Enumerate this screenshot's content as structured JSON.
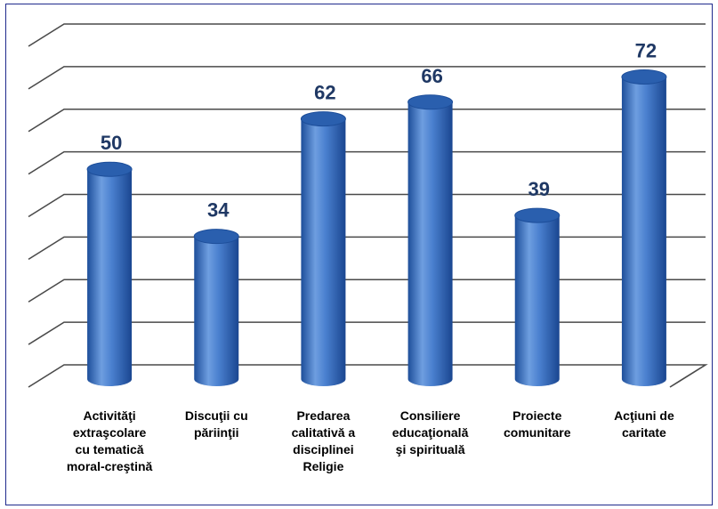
{
  "chart_data": {
    "type": "bar",
    "style": "3d-cylinder",
    "categories": [
      "Activităţi\nextraşcolare\ncu tematică\nmoral-creştină",
      "Discuţii cu\npăriinţii",
      "Predarea\ncalitativă a\ndisciplinei\nReligie",
      "Consiliere\neducaţională\nşi spirituală",
      "Proiecte\ncomunitare",
      "Acţiuni de\ncaritate"
    ],
    "values": [
      50,
      34,
      62,
      66,
      39,
      72
    ],
    "data_labels": [
      "50",
      "34",
      "62",
      "66",
      "39",
      "72"
    ],
    "title": "",
    "xlabel": "",
    "ylabel": "",
    "ylim": [
      0,
      80
    ],
    "grid": true,
    "legend": "none",
    "colors": {
      "bar_light": "#6e9ee0",
      "bar_mid": "#3f75c6",
      "bar_dark": "#1d4e9a",
      "bar_top": "#2a5fae",
      "value_label": "#1f3864",
      "gridline": "#4a4a4a",
      "frame": "#1f2a8c"
    }
  }
}
